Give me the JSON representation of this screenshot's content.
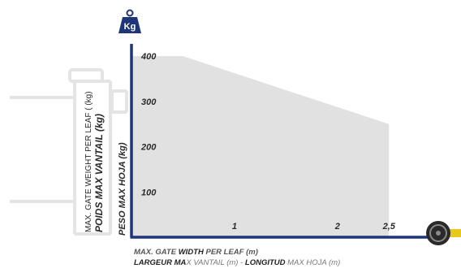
{
  "icon_weight": {
    "name": "weight-kg-icon",
    "text": "Kg"
  },
  "icon_tape": {
    "name": "tape-measure-icon"
  },
  "left_axis_label": {
    "line1": "MAX. GATE WEIGHT PER LEAF ( (kg)",
    "line2": "POIDS MAX VANTAIL (kg)"
  },
  "inner_axis_label": "PESO MAX HOJA (kg)",
  "x_axis_label": {
    "line1_pre": "MAX. GATE ",
    "line1_bold": "WIDTH",
    "line1_post": " PER LEAF (m)",
    "line2_a": "LARGEUR MA",
    "line2_b": "X VANTAIL (m) - ",
    "line2_c": "LONGITUD",
    "line2_d": " MAX HOJA (m)"
  },
  "chart_data": {
    "type": "area",
    "x": [
      0,
      0.5,
      2.5,
      2.5
    ],
    "y": [
      400,
      400,
      250,
      0
    ],
    "xlim": [
      0,
      2.9
    ],
    "ylim": [
      0,
      420
    ],
    "xticks": [
      {
        "value": 1,
        "label": "1"
      },
      {
        "value": 2,
        "label": "2"
      },
      {
        "value": 2.5,
        "label": "2,5"
      }
    ],
    "yticks": [
      {
        "value": 100,
        "label": "100"
      },
      {
        "value": 200,
        "label": "200"
      },
      {
        "value": 300,
        "label": "300"
      },
      {
        "value": 400,
        "label": "400"
      }
    ],
    "fill_color": "#e1e1e1",
    "axis_color": "#1e3577",
    "grid": false
  }
}
